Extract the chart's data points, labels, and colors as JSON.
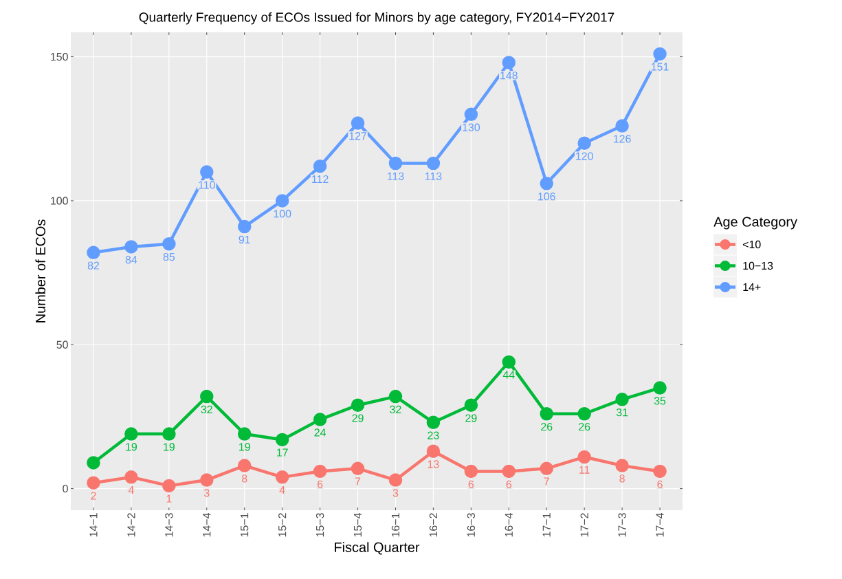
{
  "chart_data": {
    "type": "line",
    "title": "Quarterly Frequency of ECOs Issued for Minors by age category, FY2014−FY2017",
    "xlabel": "Fiscal Quarter",
    "ylabel": "Number of ECOs",
    "legend_title": "Age Category",
    "categories": [
      "14−1",
      "14−2",
      "14−3",
      "14−4",
      "15−1",
      "15−2",
      "15−3",
      "15−4",
      "16−1",
      "16−2",
      "16−3",
      "16−4",
      "17−1",
      "17−2",
      "17−3",
      "17−4"
    ],
    "series": [
      {
        "name": "<10",
        "color": "#f8766d",
        "values": [
          2,
          4,
          1,
          3,
          8,
          4,
          6,
          7,
          3,
          13,
          6,
          6,
          7,
          11,
          8,
          6
        ],
        "value_labels": [
          "2",
          "4",
          "1",
          "3",
          "8",
          "4",
          "6",
          "7",
          "3",
          "13",
          "6",
          "6",
          "7",
          "11",
          "8",
          "6"
        ]
      },
      {
        "name": "10−13",
        "color": "#00ba38",
        "values": [
          9,
          19,
          19,
          32,
          19,
          17,
          24,
          29,
          32,
          23,
          29,
          44,
          26,
          26,
          31,
          35
        ],
        "value_labels": [
          null,
          "19",
          "19",
          "32",
          "19",
          "17",
          "24",
          "29",
          "32",
          "23",
          "29",
          "44",
          "26",
          "26",
          "31",
          "35"
        ]
      },
      {
        "name": "14+",
        "color": "#619cff",
        "values": [
          82,
          84,
          85,
          110,
          91,
          100,
          112,
          127,
          113,
          113,
          130,
          148,
          106,
          120,
          126,
          151
        ],
        "value_labels": [
          "82",
          "84",
          "85",
          "110",
          "91",
          "100",
          "112",
          "127",
          "113",
          "113",
          "130",
          "148",
          "106",
          "120",
          "126",
          "151"
        ]
      }
    ],
    "ylim": [
      -7.5,
      158.5
    ],
    "yticks": [
      0,
      50,
      100,
      150
    ],
    "grid": true,
    "legend": "right",
    "marker": "circle",
    "line_style": "solid"
  }
}
